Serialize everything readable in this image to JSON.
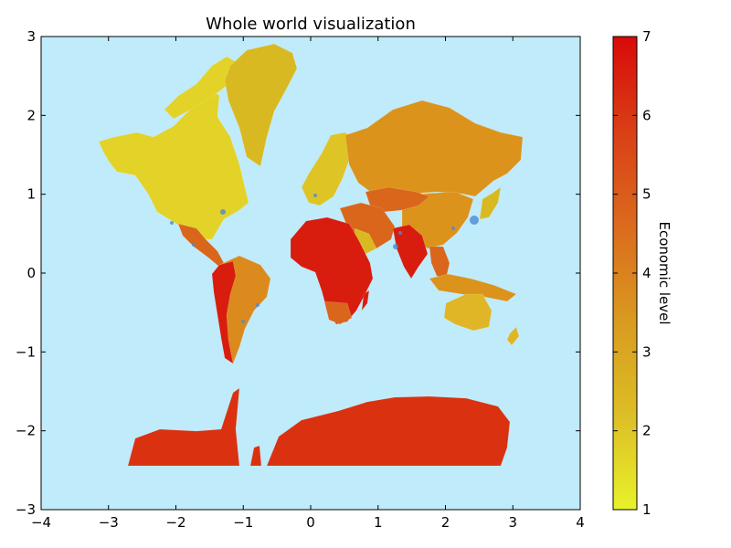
{
  "title": "Whole world visualization",
  "colorbar": {
    "label": "Economic level",
    "min": 1,
    "max": 7,
    "ticks": [
      "1",
      "2",
      "3",
      "4",
      "5",
      "6",
      "7"
    ],
    "stops": [
      "#e8f22a",
      "#dcbe26",
      "#d99a1f",
      "#db6a1e",
      "#d93f16",
      "#d90a0a"
    ]
  },
  "axes": {
    "xlim": [
      -4,
      4
    ],
    "ylim": [
      -3,
      3
    ],
    "xticks": [
      "−4",
      "−3",
      "−2",
      "−1",
      "0",
      "1",
      "2",
      "3",
      "4"
    ],
    "yticks": [
      "3",
      "2",
      "1",
      "0",
      "−1",
      "−2",
      "−3"
    ]
  },
  "colors": {
    "ocean": "#bfebfb",
    "americas_north": "#e3d228",
    "greenland": "#d9b922",
    "south_america": "#db8a1e",
    "europe": "#dfc425",
    "russia_asia": "#dc931c",
    "africa": "#d81d0e",
    "middle_east": "#d9661b",
    "oceania": "#e0b626",
    "antarctica": "#da3110",
    "city_dots": "#4a8bd3"
  },
  "chart_data": {
    "type": "choropleth-map",
    "title": "Whole world visualization",
    "colorbar_label": "Economic level",
    "colorbar_range": [
      1,
      7
    ],
    "xlim": [
      -4,
      4
    ],
    "ylim": [
      -3,
      3
    ],
    "colormap": "yellow-to-red",
    "regions": [
      {
        "name": "North America",
        "level": 2.3
      },
      {
        "name": "Greenland",
        "level": 3.0
      },
      {
        "name": "Europe",
        "level": 2.6
      },
      {
        "name": "Russia / Central Asia",
        "level": 3.8
      },
      {
        "name": "China",
        "level": 3.9
      },
      {
        "name": "Central America",
        "level": 4.8
      },
      {
        "name": "South America",
        "level": 4.1
      },
      {
        "name": "Africa",
        "level": 6.6
      },
      {
        "name": "Middle East",
        "level": 4.9
      },
      {
        "name": "India",
        "level": 6.5
      },
      {
        "name": "Southeast Asia",
        "level": 5.0
      },
      {
        "name": "Australia",
        "level": 3.1
      },
      {
        "name": "Antarctica",
        "level": 6.0
      }
    ]
  }
}
